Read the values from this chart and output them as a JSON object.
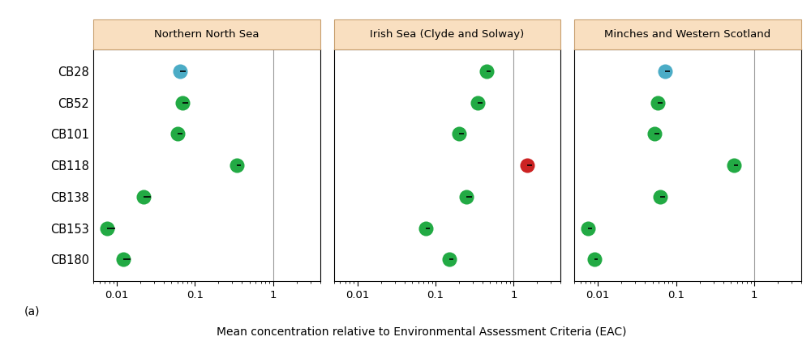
{
  "panels": [
    {
      "title": "Northern North Sea",
      "vline": 1.0,
      "means": [
        0.065,
        0.07,
        0.06,
        0.34,
        0.022,
        0.0075,
        0.012
      ],
      "err_lo": [
        0.0,
        0.0,
        0.0,
        0.0,
        0.0,
        0.0,
        0.0
      ],
      "err_hi": [
        0.012,
        0.012,
        0.01,
        0.045,
        0.005,
        0.002,
        0.003
      ],
      "colors": [
        "#4bacc6",
        "#22aa44",
        "#22aa44",
        "#22aa44",
        "#22aa44",
        "#22aa44",
        "#22aa44"
      ]
    },
    {
      "title": "Irish Sea (Clyde and Solway)",
      "vline": 1.0,
      "means": [
        0.45,
        0.35,
        0.2,
        1.5,
        0.25,
        0.075,
        0.15
      ],
      "err_lo": [
        0.0,
        0.0,
        0.0,
        0.0,
        0.0,
        0.0,
        0.0
      ],
      "err_hi": [
        0.06,
        0.05,
        0.03,
        0.2,
        0.04,
        0.01,
        0.02
      ],
      "colors": [
        "#22aa44",
        "#22aa44",
        "#22aa44",
        "#cc2222",
        "#22aa44",
        "#22aa44",
        "#22aa44"
      ]
    },
    {
      "title": "Minches and Western Scotland",
      "vline": 1.0,
      "means": [
        0.072,
        0.058,
        0.053,
        0.55,
        0.062,
        0.0075,
        0.009
      ],
      "err_lo": [
        0.0,
        0.0,
        0.0,
        0.0,
        0.0,
        0.0,
        0.0
      ],
      "err_hi": [
        0.012,
        0.009,
        0.008,
        0.07,
        0.01,
        0.001,
        0.001
      ],
      "colors": [
        "#4bacc6",
        "#22aa44",
        "#22aa44",
        "#22aa44",
        "#22aa44",
        "#22aa44",
        "#22aa44"
      ]
    }
  ],
  "compounds": [
    "CB28",
    "CB52",
    "CB101",
    "CB118",
    "CB138",
    "CB153",
    "CB180"
  ],
  "xlabel": "Mean concentration relative to Environmental Assessment Criteria (EAC)",
  "title_facecolor": "#f9dfc0",
  "title_edgecolor": "#c8a070",
  "figure_label": "(a)",
  "dot_size": 13,
  "xlim": [
    0.005,
    4.0
  ],
  "xticks": [
    0.01,
    0.1,
    1
  ],
  "xtick_labels": [
    "0.01",
    "0.1",
    "1"
  ]
}
